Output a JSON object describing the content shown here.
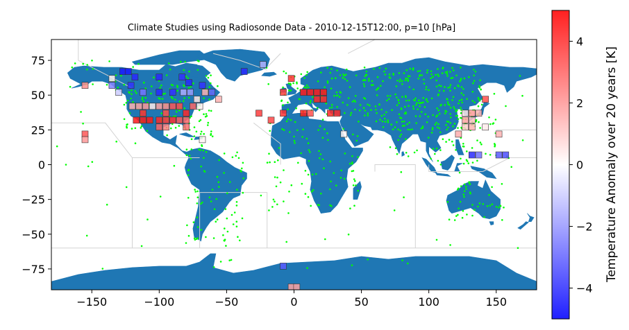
{
  "chart_data": {
    "type": "scatter",
    "title": "Climate Studies using Radiosonde Data - 2010-12-15T12:00, p=10 [hPa]",
    "xlabel": "",
    "ylabel": "",
    "xlim": [
      -180,
      180
    ],
    "ylim": [
      -90,
      90
    ],
    "xticks": [
      -150,
      -100,
      -50,
      0,
      50,
      100,
      150
    ],
    "yticks": [
      -75,
      -50,
      -25,
      0,
      25,
      50,
      75
    ],
    "grid": false,
    "colors": {
      "land": "#1f77b4",
      "ocean": "#ffffff",
      "borders": "#d3d3d3",
      "stations": "#00ff00",
      "cmap_low": "#0000ff",
      "cmap_mid": "#ffffff",
      "cmap_high": "#ff0000"
    },
    "colorbar": {
      "label": "Temperature Anomaly over 20 years [K]",
      "min": -5,
      "max": 5,
      "ticks": [
        -4,
        -2,
        0,
        2,
        4
      ]
    },
    "anomalies": [
      {
        "lon": -127,
        "lat": 67,
        "value": -4.5
      },
      {
        "lon": -123,
        "lat": 67,
        "value": -4.5
      },
      {
        "lon": -118,
        "lat": 63,
        "value": -4.2
      },
      {
        "lon": -100,
        "lat": 63,
        "value": -4.2
      },
      {
        "lon": -83,
        "lat": 63,
        "value": -4.0
      },
      {
        "lon": -135,
        "lat": 62,
        "value": 0.3
      },
      {
        "lon": -78,
        "lat": 59,
        "value": -4.2
      },
      {
        "lon": -68,
        "lat": 57,
        "value": -4.0
      },
      {
        "lon": -135,
        "lat": 57,
        "value": -2.4
      },
      {
        "lon": -121,
        "lat": 57,
        "value": -4.0
      },
      {
        "lon": -112,
        "lat": 52,
        "value": -2.7
      },
      {
        "lon": -100,
        "lat": 52,
        "value": -4.2
      },
      {
        "lon": -90,
        "lat": 52,
        "value": -4.0
      },
      {
        "lon": -77,
        "lat": 52,
        "value": -2.0
      },
      {
        "lon": -61,
        "lat": 52,
        "value": -3.0
      },
      {
        "lon": -66,
        "lat": 52,
        "value": 1.5
      },
      {
        "lon": -130,
        "lat": 52,
        "value": -1.0
      },
      {
        "lon": -82,
        "lat": 52,
        "value": -1.6
      },
      {
        "lon": -72,
        "lat": 47,
        "value": 0.5
      },
      {
        "lon": -56,
        "lat": 47,
        "value": 1.5
      },
      {
        "lon": -120,
        "lat": 42,
        "value": 1.5
      },
      {
        "lon": -115,
        "lat": 42,
        "value": 1.8
      },
      {
        "lon": -105,
        "lat": 42,
        "value": 0.4
      },
      {
        "lon": -110,
        "lat": 42,
        "value": 2.0
      },
      {
        "lon": -100,
        "lat": 42,
        "value": 1.8
      },
      {
        "lon": -95,
        "lat": 42,
        "value": 2.2
      },
      {
        "lon": -90,
        "lat": 42,
        "value": 3.3
      },
      {
        "lon": -85,
        "lat": 42,
        "value": 3.5
      },
      {
        "lon": -75,
        "lat": 42,
        "value": 3.0
      },
      {
        "lon": -70,
        "lat": 42,
        "value": 0.3
      },
      {
        "lon": -112,
        "lat": 37,
        "value": 4.0
      },
      {
        "lon": -95,
        "lat": 37,
        "value": 3.5
      },
      {
        "lon": -80,
        "lat": 37,
        "value": 4.2
      },
      {
        "lon": -117,
        "lat": 32,
        "value": 4.5
      },
      {
        "lon": -112,
        "lat": 32,
        "value": 4.5
      },
      {
        "lon": -107,
        "lat": 32,
        "value": 4.5
      },
      {
        "lon": -100,
        "lat": 32,
        "value": 4.2
      },
      {
        "lon": -95,
        "lat": 32,
        "value": 3.8
      },
      {
        "lon": -90,
        "lat": 32,
        "value": 4.0
      },
      {
        "lon": -85,
        "lat": 32,
        "value": 3.2
      },
      {
        "lon": -80,
        "lat": 32,
        "value": 3.0
      },
      {
        "lon": -100,
        "lat": 27,
        "value": 3.0
      },
      {
        "lon": -95,
        "lat": 27,
        "value": 2.5
      },
      {
        "lon": -80,
        "lat": 27,
        "value": 2.8
      },
      {
        "lon": -155,
        "lat": 57,
        "value": 2.2
      },
      {
        "lon": -155,
        "lat": 22,
        "value": 3.3
      },
      {
        "lon": -155,
        "lat": 18,
        "value": 2.0
      },
      {
        "lon": -68,
        "lat": 18,
        "value": 0.2
      },
      {
        "lon": -37,
        "lat": 67,
        "value": -4.2
      },
      {
        "lon": -23,
        "lat": 72,
        "value": -1.5
      },
      {
        "lon": -26,
        "lat": 37,
        "value": 3.8
      },
      {
        "lon": -17,
        "lat": 32,
        "value": 3.6
      },
      {
        "lon": -2,
        "lat": 62,
        "value": 4.0
      },
      {
        "lon": -8,
        "lat": 52,
        "value": 3.8
      },
      {
        "lon": -8,
        "lat": 37,
        "value": 4.0
      },
      {
        "lon": 7,
        "lat": 52,
        "value": 4.5
      },
      {
        "lon": 12,
        "lat": 52,
        "value": 4.5
      },
      {
        "lon": 17,
        "lat": 52,
        "value": 4.5
      },
      {
        "lon": 22,
        "lat": 52,
        "value": 4.5
      },
      {
        "lon": 17,
        "lat": 47,
        "value": 4.2
      },
      {
        "lon": 22,
        "lat": 47,
        "value": 4.2
      },
      {
        "lon": 7,
        "lat": 37,
        "value": 4.4
      },
      {
        "lon": 12,
        "lat": 37,
        "value": 3.5
      },
      {
        "lon": 27,
        "lat": 37,
        "value": 4.2
      },
      {
        "lon": 32,
        "lat": 37,
        "value": 4.2
      },
      {
        "lon": 37,
        "lat": 22,
        "value": 0.2
      },
      {
        "lon": 142,
        "lat": 47,
        "value": 3.5
      },
      {
        "lon": 127,
        "lat": 37,
        "value": 0.5
      },
      {
        "lon": 132,
        "lat": 37,
        "value": 2.0
      },
      {
        "lon": 137,
        "lat": 37,
        "value": 1.5
      },
      {
        "lon": 127,
        "lat": 32,
        "value": 1.8
      },
      {
        "lon": 132,
        "lat": 32,
        "value": 1.2
      },
      {
        "lon": 127,
        "lat": 27,
        "value": 1.0
      },
      {
        "lon": 132,
        "lat": 27,
        "value": 1.5
      },
      {
        "lon": 142,
        "lat": 27,
        "value": 0.4
      },
      {
        "lon": 122,
        "lat": 22,
        "value": 1.6
      },
      {
        "lon": 152,
        "lat": 22,
        "value": 1.5
      },
      {
        "lon": 132,
        "lat": 7,
        "value": -4.2
      },
      {
        "lon": 137,
        "lat": 7,
        "value": -2.8
      },
      {
        "lon": 152,
        "lat": 7,
        "value": -3.2
      },
      {
        "lon": 157,
        "lat": 7,
        "value": -3.5
      },
      {
        "lon": -8,
        "lat": -73,
        "value": -3.2
      },
      {
        "lon": -2,
        "lat": -88,
        "value": 1.8
      },
      {
        "lon": 2,
        "lat": -88,
        "value": 1.8
      }
    ]
  }
}
